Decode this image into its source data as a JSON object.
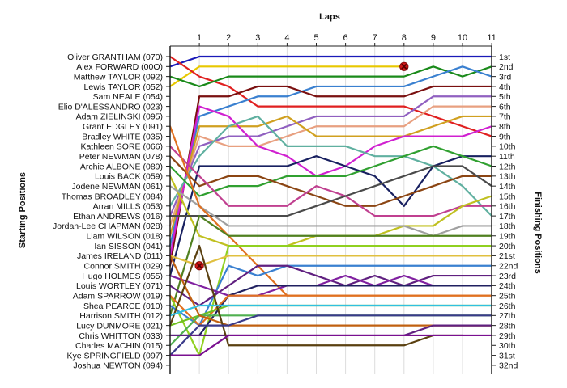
{
  "chart_data": {
    "type": "line",
    "title": "",
    "xlabel": "Laps",
    "ylabel_left": "Starting Positions",
    "ylabel_right": "Finishing Positions",
    "x": [
      0,
      1,
      2,
      3,
      4,
      5,
      6,
      7,
      8,
      9,
      10,
      11
    ],
    "x_tick_labels": [
      "1",
      "2",
      "3",
      "4",
      "5",
      "6",
      "7",
      "8",
      "9",
      "10",
      "11"
    ],
    "drivers": [
      "Oliver GRANTHAM (070)",
      "Alex FORWARD (00O)",
      "Matthew TAYLOR (092)",
      "Lewis TAYLOR (052)",
      "Sam NEALE (054)",
      "Elio D'ALESSANDRO (023)",
      "Adam ZIELINSKI (095)",
      "Grant EDGLEY (091)",
      "Bradley WHITE (035)",
      "Kathleen SORE (066)",
      "Peter NEWMAN (078)",
      "Archie ALBONE (089)",
      "Louis BACK (059)",
      "Jodene NEWMAN (061)",
      "Thomas BROADLEY (084)",
      "Arran MILLS (053)",
      "Ethan ANDREWS (016)",
      "Jordan-Lee CHAPMAN (028)",
      "Liam WILSON (018)",
      "Ian SISSON (041)",
      "James IRELAND (011)",
      "Connor SMITH (029)",
      "Hugo HOLMES (055)",
      "Louis WORTLEY (071)",
      "Adam SPARROW (019)",
      "Shea PEARCE (010)",
      "Harrison SMITH (012)",
      "Lucy DUNMORE (021)",
      "Chris WHITTON (033)",
      "Charles MACHIN (015)",
      "Kye SPRINGFIELD (097)",
      "Joshua NEWTON (094)"
    ],
    "finishing_labels": [
      "1st",
      "2nd",
      "3rd",
      "4th",
      "5th",
      "6th",
      "7th",
      "8th",
      "9th",
      "10th",
      "11th",
      "12th",
      "13th",
      "14th",
      "15th",
      "16th",
      "17th",
      "18th",
      "19th",
      "20th",
      "21st",
      "22nd",
      "23rd",
      "24th",
      "25th",
      "26th",
      "27th",
      "28th",
      "29th",
      "30th",
      "31st",
      "32nd"
    ],
    "series": [
      {
        "color": "#1a1ab8",
        "positions": [
          2,
          1,
          1,
          1,
          1,
          1,
          1,
          1,
          1,
          1,
          1,
          1
        ]
      },
      {
        "color": "#e8c800",
        "positions": [
          4,
          2,
          2,
          2,
          2,
          2,
          2,
          2,
          2
        ]
      },
      {
        "color": "#e02020",
        "positions": [
          1,
          3,
          4,
          6,
          6,
          6,
          6,
          6,
          6,
          7,
          8,
          9
        ]
      },
      {
        "color": "#1a8a1a",
        "positions": [
          3,
          4,
          3,
          3,
          3,
          3,
          3,
          3,
          3,
          2,
          3,
          2
        ]
      },
      {
        "color": "#3a80d0",
        "positions": [
          20,
          7,
          6,
          5,
          5,
          4,
          4,
          4,
          4,
          3,
          2,
          3
        ]
      },
      {
        "color": "#7a1010",
        "positions": [
          22,
          5,
          5,
          4,
          4,
          5,
          5,
          5,
          5,
          4,
          4,
          4
        ]
      },
      {
        "color": "#9060c0",
        "positions": [
          17,
          10,
          9,
          9,
          8,
          7,
          7,
          7,
          7,
          5,
          5,
          5
        ]
      },
      {
        "color": "#e8a080",
        "positions": [
          18,
          9,
          10,
          10,
          9,
          8,
          8,
          8,
          8,
          6,
          6,
          6
        ]
      },
      {
        "color": "#d0a020",
        "positions": [
          19,
          8,
          8,
          8,
          7,
          9,
          9,
          9,
          9,
          8,
          7,
          7
        ]
      },
      {
        "color": "#d020d0",
        "positions": [
          21,
          6,
          7,
          10,
          11,
          13,
          12,
          10,
          9,
          9,
          9,
          8
        ]
      },
      {
        "color": "#60b0a0",
        "positions": [
          16,
          11,
          8,
          7,
          10,
          10,
          10,
          11,
          11,
          12,
          14,
          17
        ]
      },
      {
        "color": "#182060",
        "positions": [
          23,
          12,
          12,
          12,
          12,
          11,
          12,
          13,
          16,
          12,
          11,
          11
        ]
      },
      {
        "color": "#30a030",
        "positions": [
          12,
          15,
          14,
          14,
          13,
          13,
          13,
          12,
          11,
          10,
          11,
          12
        ]
      },
      {
        "color": "#8b4513",
        "positions": [
          11,
          14,
          13,
          13,
          14,
          15,
          16,
          16,
          15,
          14,
          13,
          13
        ]
      },
      {
        "color": "#c04090",
        "positions": [
          10,
          13,
          16,
          16,
          16,
          14,
          15,
          17,
          17,
          17,
          16,
          16
        ]
      },
      {
        "color": "#c0c020",
        "positions": [
          13,
          19,
          20,
          20,
          20,
          19,
          19,
          19,
          18,
          18,
          16,
          15
        ]
      },
      {
        "color": "#4a4a4a",
        "positions": [
          17,
          17,
          17,
          17,
          17,
          16,
          15,
          14,
          13,
          12,
          12,
          14
        ]
      },
      {
        "color": "#a0a0a0",
        "positions": [
          14,
          16,
          18,
          18,
          18,
          18,
          18,
          18,
          18,
          19,
          18,
          18
        ]
      },
      {
        "color": "#e07020",
        "positions": [
          8,
          16,
          19,
          22,
          25,
          25,
          25,
          25,
          25,
          25,
          25,
          25
        ]
      },
      {
        "color": "#508020",
        "positions": [
          27,
          17,
          19,
          19,
          19,
          19,
          19,
          19,
          19,
          19,
          19,
          19
        ]
      },
      {
        "color": "#90d020",
        "positions": [
          25,
          31,
          20,
          20,
          20,
          20,
          20,
          20,
          20,
          20,
          20,
          20
        ]
      },
      {
        "color": "#e0c040",
        "positions": [
          21,
          22,
          21,
          21,
          21,
          21,
          21,
          21,
          21,
          21,
          21,
          21
        ]
      },
      {
        "color": "#3a80d0",
        "positions": [
          26,
          28,
          22,
          23,
          22,
          22,
          22,
          22,
          22,
          22,
          22,
          22
        ]
      },
      {
        "color": "#602080",
        "positions": [
          24,
          26,
          24,
          22,
          22,
          23,
          24,
          23,
          24,
          23,
          23,
          23
        ]
      },
      {
        "color": "#8020a0",
        "positions": [
          23,
          24,
          25,
          25,
          24,
          24,
          23,
          24,
          23,
          24,
          24,
          24
        ]
      },
      {
        "color": "#202060",
        "positions": [
          29,
          29,
          25,
          24,
          24,
          24,
          24,
          24,
          24,
          24,
          24,
          24
        ]
      },
      {
        "color": "#e07020",
        "positions": [
          25,
          28,
          25,
          25,
          25,
          25,
          25,
          25,
          25,
          25,
          25,
          25
        ]
      },
      {
        "color": "#70c020",
        "positions": [
          28,
          27,
          26,
          26,
          26,
          26,
          26,
          26,
          26,
          26,
          26,
          26
        ]
      },
      {
        "color": "#50b050",
        "positions": [
          30,
          27,
          27,
          27,
          27,
          27,
          27,
          27,
          27,
          27,
          27,
          27
        ]
      },
      {
        "color": "#c06010",
        "positions": [
          21,
          27,
          28,
          28,
          28,
          28,
          28,
          28,
          28,
          28,
          28,
          28
        ]
      },
      {
        "color": "#602080",
        "positions": [
          29,
          29,
          29,
          29,
          29,
          29,
          29,
          29,
          29,
          28,
          28,
          28
        ]
      },
      {
        "color": "#5a4010",
        "positions": [
          28,
          20,
          30,
          30,
          30,
          30,
          30,
          30,
          30,
          29,
          29
        ]
      },
      {
        "color": "#3a3a8a",
        "positions": [
          31,
          28,
          28,
          27,
          27,
          27,
          27,
          27,
          27,
          27,
          27,
          27
        ]
      },
      {
        "color": "#7a1090",
        "positions": [
          31,
          31,
          29,
          29,
          29,
          29,
          29,
          29,
          29,
          29,
          29,
          29
        ]
      },
      {
        "color": "#30c0e0",
        "positions": [
          27,
          26,
          26,
          26,
          26,
          26,
          26,
          26,
          26,
          26,
          26,
          26
        ]
      }
    ],
    "markers": [
      {
        "type": "retired",
        "lap": 8,
        "position": 2
      },
      {
        "type": "retired",
        "lap": 1,
        "position": 22
      }
    ],
    "grid": true,
    "legend": "none"
  }
}
